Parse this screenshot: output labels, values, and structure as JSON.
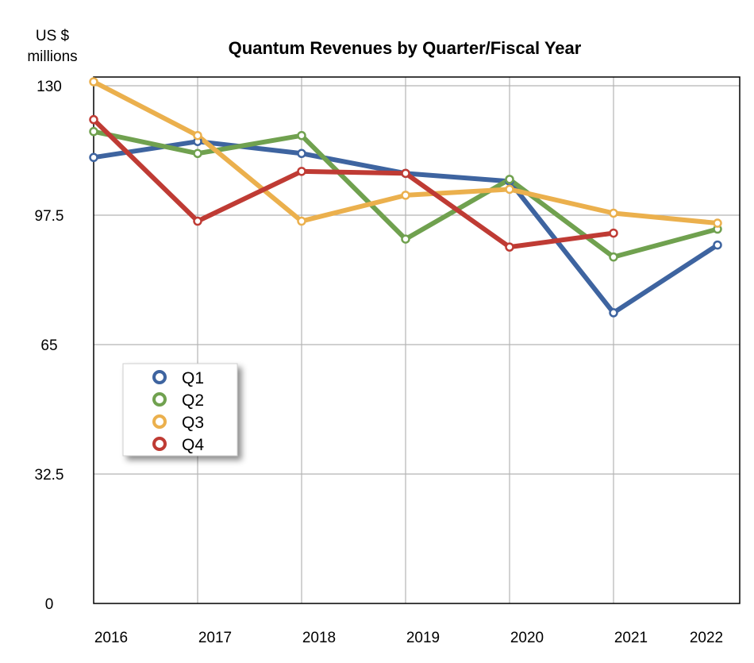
{
  "chart_data": {
    "type": "line",
    "title": "Quantum Revenues by Quarter/Fiscal Year",
    "ylabel_line1": "US $",
    "ylabel_line2": "millions",
    "xlabel": "",
    "x": [
      "2016",
      "2017",
      "2018",
      "2019",
      "2020",
      "2021",
      "2022"
    ],
    "ylim": [
      0,
      130
    ],
    "yticks": [
      0,
      32.5,
      65,
      97.5,
      130
    ],
    "yticks_labels": [
      "0",
      "32.5",
      "65",
      "97.5",
      "130"
    ],
    "grid": true,
    "legend_position": "left-middle",
    "series": [
      {
        "name": "Q1",
        "color": "#3e64a0",
        "values": [
          112,
          116,
          113,
          108,
          106,
          73,
          90
        ]
      },
      {
        "name": "Q2",
        "color": "#70a14f",
        "values": [
          118.5,
          113,
          117.5,
          91.5,
          106.5,
          87,
          94
        ]
      },
      {
        "name": "Q3",
        "color": "#ebb04d",
        "values": [
          131,
          117.5,
          96,
          102.5,
          104,
          98,
          95.5
        ]
      },
      {
        "name": "Q4",
        "color": "#bf3b34",
        "values": [
          121.5,
          96,
          108.5,
          108,
          89.5,
          93,
          null
        ]
      }
    ]
  }
}
